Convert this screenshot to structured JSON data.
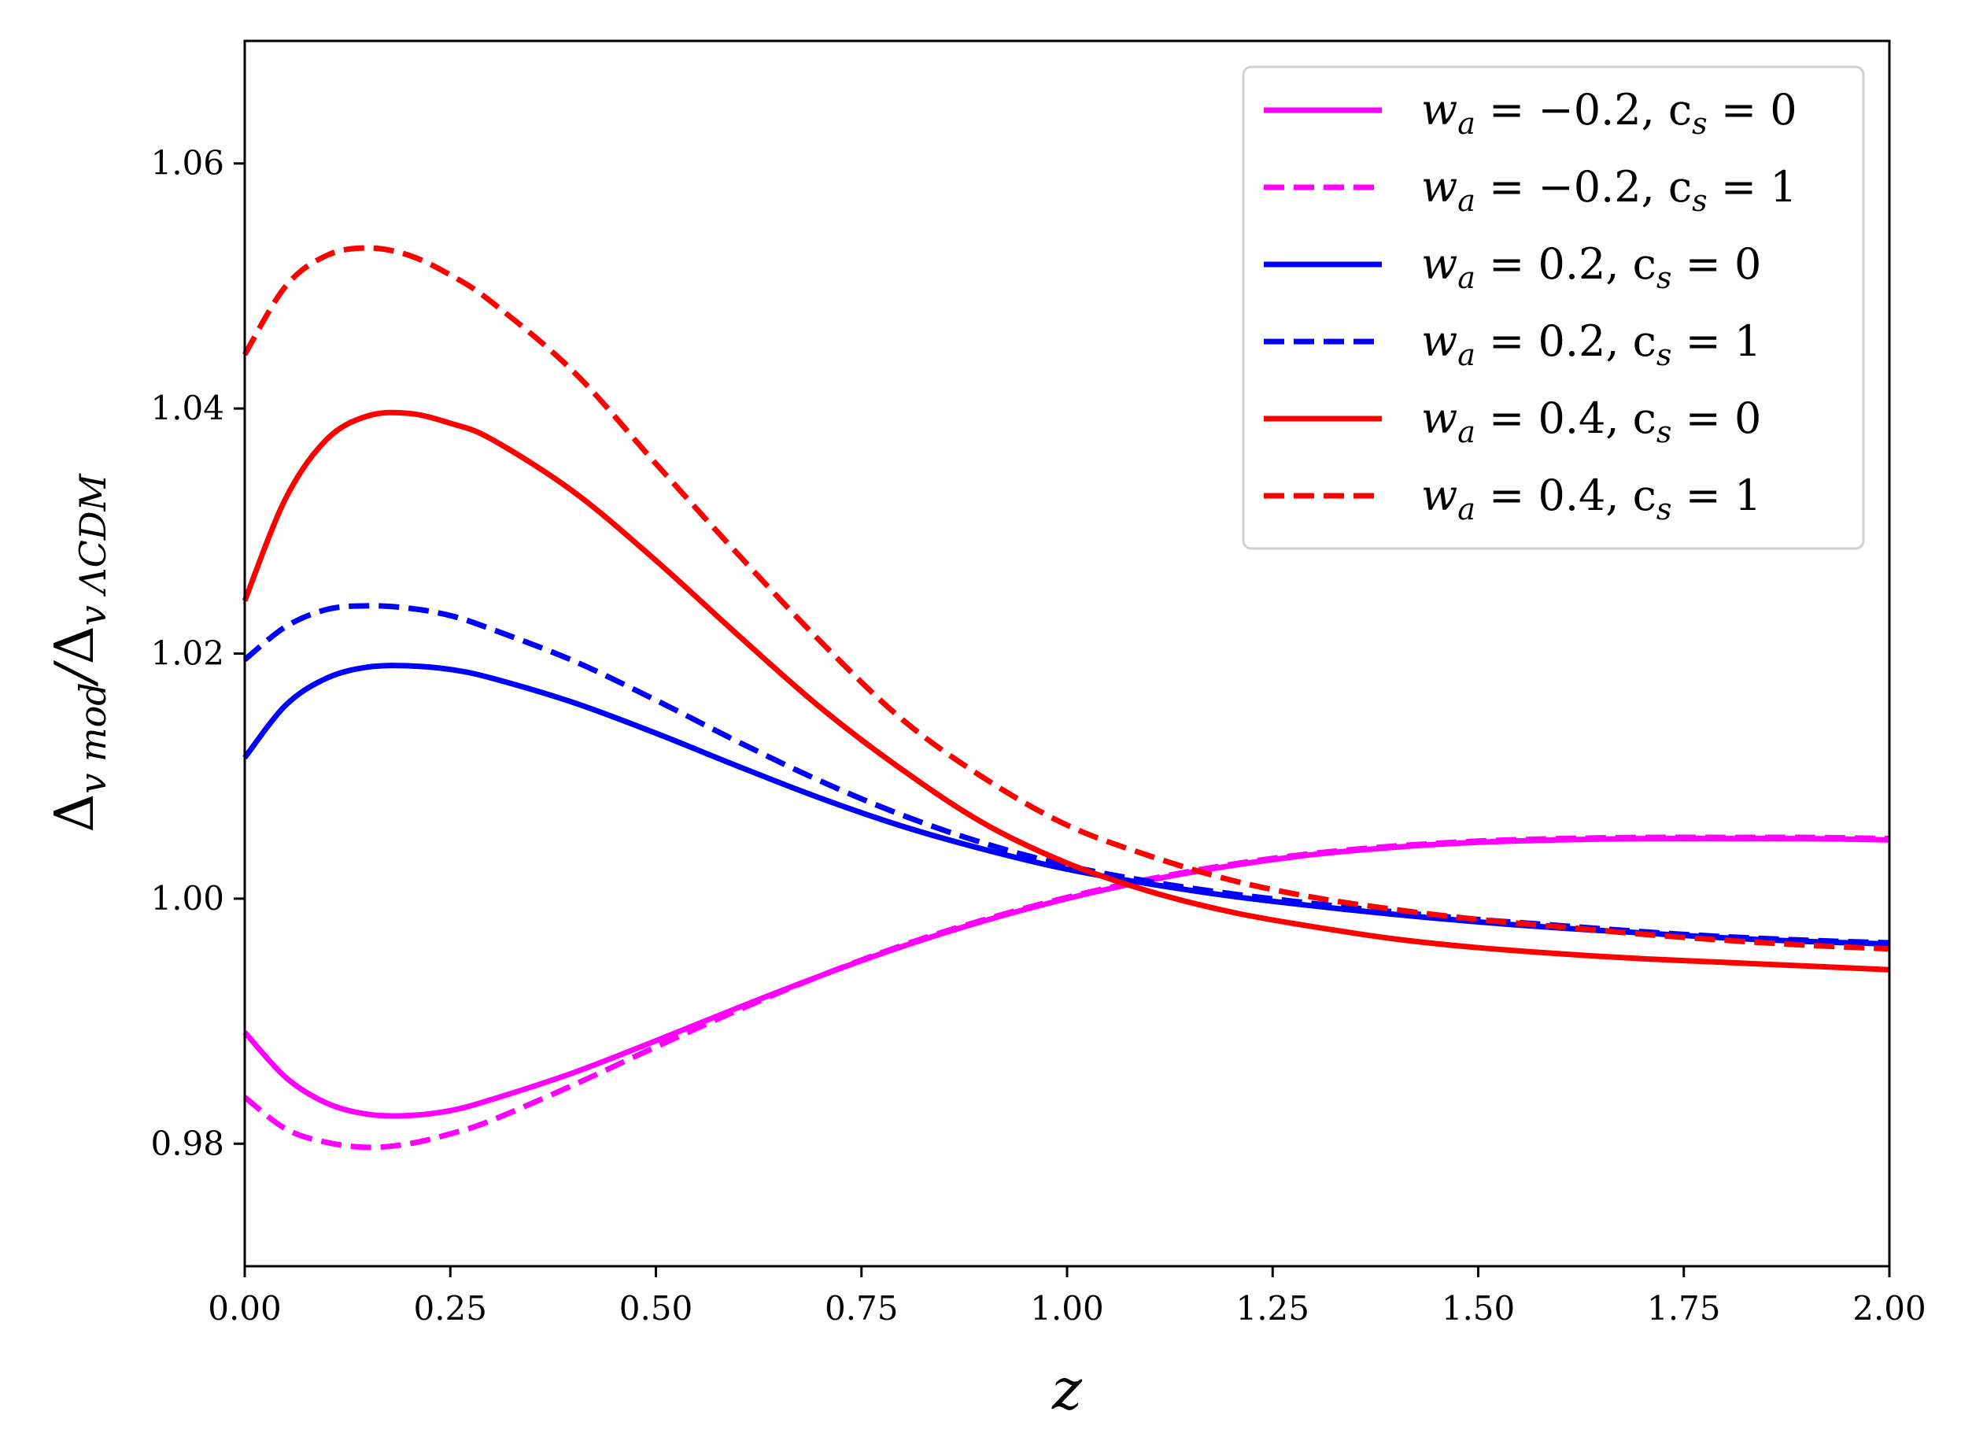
{
  "chart_data": {
    "type": "line",
    "title": "",
    "xlabel": "z",
    "ylabel": "Δv mod/Δv ΛCDM",
    "xlim": [
      0,
      2
    ],
    "ylim": [
      0.97,
      1.07
    ],
    "x_ticks": [
      "0.00",
      "0.25",
      "0.50",
      "0.75",
      "1.00",
      "1.25",
      "1.50",
      "1.75",
      "2.00"
    ],
    "y_ticks": [
      "0.98",
      "1.00",
      "1.02",
      "1.04",
      "1.06"
    ],
    "x_tick_values": [
      0,
      0.25,
      0.5,
      0.75,
      1.0,
      1.25,
      1.5,
      1.75,
      2.0
    ],
    "y_tick_values": [
      0.98,
      1.0,
      1.02,
      1.04,
      1.06
    ],
    "legend_position": "top-right",
    "x": [
      0,
      0.05,
      0.1,
      0.15,
      0.2,
      0.25,
      0.3,
      0.4,
      0.5,
      0.6,
      0.7,
      0.8,
      0.9,
      1.0,
      1.1,
      1.2,
      1.3,
      1.4,
      1.5,
      1.6,
      1.7,
      1.8,
      1.9,
      2.0
    ],
    "series": [
      {
        "name": "w_a = −0.2, c_s = 0",
        "color": "#ff00ff",
        "dash": "solid",
        "values": [
          0.9891,
          0.9854,
          0.9833,
          0.9824,
          0.9823,
          0.9827,
          0.9836,
          0.9858,
          0.9884,
          0.9911,
          0.9937,
          0.9961,
          0.9982,
          1.0,
          1.0015,
          1.0027,
          1.0036,
          1.0042,
          1.0046,
          1.0048,
          1.0049,
          1.0049,
          1.0049,
          1.0048
        ]
      },
      {
        "name": "w_a = −0.2, c_s = 1",
        "color": "#ff00ff",
        "dash": "dashed",
        "values": [
          0.9838,
          0.9812,
          0.9801,
          0.9797,
          0.98,
          0.9808,
          0.9819,
          0.9848,
          0.9879,
          0.9909,
          0.9937,
          0.9962,
          0.9983,
          1.0001,
          1.0016,
          1.0028,
          1.0037,
          1.0043,
          1.0047,
          1.0049,
          1.005,
          1.005,
          1.005,
          1.0049
        ]
      },
      {
        "name": "w_a = 0.2, c_s = 0",
        "color": "#0000ff",
        "dash": "solid",
        "values": [
          1.0115,
          1.0158,
          1.018,
          1.0189,
          1.019,
          1.0187,
          1.018,
          1.016,
          1.0135,
          1.0108,
          1.0082,
          1.0059,
          1.004,
          1.0024,
          1.0012,
          1.0002,
          0.9994,
          0.9987,
          0.9981,
          0.9976,
          0.9972,
          0.9968,
          0.9965,
          0.9963
        ]
      },
      {
        "name": "w_a = 0.2, c_s = 1",
        "color": "#0000ff",
        "dash": "dashed",
        "values": [
          1.0195,
          1.0222,
          1.0236,
          1.0239,
          1.0237,
          1.0231,
          1.022,
          1.0194,
          1.0162,
          1.0128,
          1.0096,
          1.0068,
          1.0045,
          1.0027,
          1.0014,
          1.0004,
          0.9996,
          0.9989,
          0.9983,
          0.9978,
          0.9973,
          0.9969,
          0.9966,
          0.9964
        ]
      },
      {
        "name": "w_a = 0.4, c_s = 0",
        "color": "#ff0000",
        "dash": "solid",
        "values": [
          1.0243,
          1.0327,
          1.0375,
          1.0394,
          1.0396,
          1.0388,
          1.0375,
          1.0332,
          1.0276,
          1.0215,
          1.0156,
          1.0105,
          1.0061,
          1.0029,
          1.0006,
          0.9989,
          0.9977,
          0.9967,
          0.996,
          0.9955,
          0.9951,
          0.9948,
          0.9945,
          0.9942
        ]
      },
      {
        "name": "w_a = 0.4, c_s = 1",
        "color": "#ff0000",
        "dash": "dashed",
        "values": [
          1.0444,
          1.05,
          1.0525,
          1.0531,
          1.0525,
          1.0509,
          1.0487,
          1.043,
          1.0355,
          1.0281,
          1.021,
          1.0146,
          1.0098,
          1.006,
          1.0035,
          1.0015,
          1.0001,
          0.9991,
          0.9983,
          0.9977,
          0.9971,
          0.9966,
          0.9962,
          0.9959
        ]
      }
    ]
  },
  "legend": {
    "items": [
      {
        "lhs": "w",
        "sub": "a",
        "mid": " = −0.2, c",
        "sub2": "s",
        "rhs": " = 0"
      },
      {
        "lhs": "w",
        "sub": "a",
        "mid": " = −0.2, c",
        "sub2": "s",
        "rhs": " = 1"
      },
      {
        "lhs": "w",
        "sub": "a",
        "mid": " = 0.2, c",
        "sub2": "s",
        "rhs": " = 0"
      },
      {
        "lhs": "w",
        "sub": "a",
        "mid": " = 0.2, c",
        "sub2": "s",
        "rhs": " = 1"
      },
      {
        "lhs": "w",
        "sub": "a",
        "mid": " = 0.4, c",
        "sub2": "s",
        "rhs": " = 0"
      },
      {
        "lhs": "w",
        "sub": "a",
        "mid": " = 0.4, c",
        "sub2": "s",
        "rhs": " = 1"
      }
    ]
  },
  "ylabel_parts": {
    "delta1": "Δ",
    "sub1": "v mod",
    "slash": "/",
    "delta2": "Δ",
    "sub2": "v ΛCDM"
  }
}
